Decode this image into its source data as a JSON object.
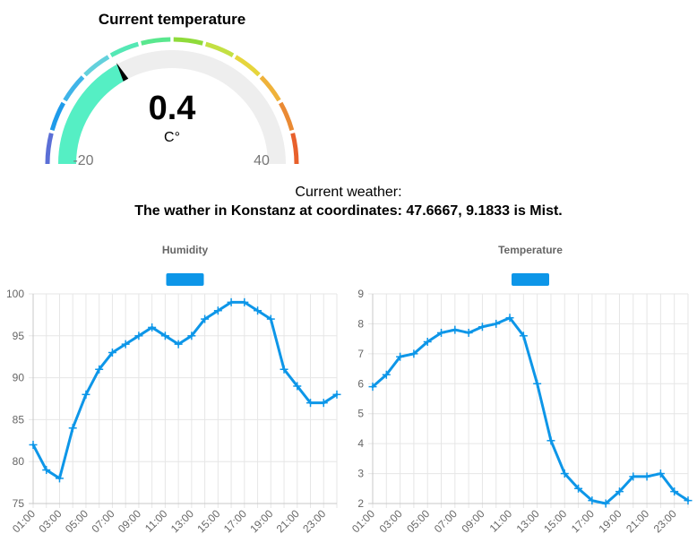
{
  "gauge": {
    "title": "Current temperature",
    "value": 0.4,
    "value_text": "0.4",
    "unit": "C°",
    "min": -20,
    "max": 40,
    "min_label": "-20",
    "max_label": "40",
    "fill_color": "#55efc4",
    "track_color": "#eeeeee",
    "band_colors": [
      "#5b6fd6",
      "#1e9bea",
      "#3fb4e8",
      "#63d1dc",
      "#55e8b5",
      "#59e78e",
      "#8fdb3a",
      "#c3e043",
      "#e6d53c",
      "#efb23a",
      "#ea8a34",
      "#e8602c"
    ]
  },
  "weather": {
    "label": "Current weather:",
    "description": "The wather in Konstanz at coordinates: 47.6667, 9.1833 is Mist."
  },
  "chart_data": [
    {
      "type": "line",
      "title": "Humidity",
      "x": [
        "01:00",
        "02:00",
        "03:00",
        "04:00",
        "05:00",
        "06:00",
        "07:00",
        "08:00",
        "09:00",
        "10:00",
        "11:00",
        "12:00",
        "13:00",
        "14:00",
        "15:00",
        "16:00",
        "17:00",
        "18:00",
        "19:00",
        "20:00",
        "21:00",
        "22:00",
        "23:00",
        "24:00"
      ],
      "xtick_labels": [
        "01:00",
        "03:00",
        "05:00",
        "07:00",
        "09:00",
        "11:00",
        "13:00",
        "15:00",
        "17:00",
        "19:00",
        "21:00",
        "23:00"
      ],
      "series": [
        {
          "values": [
            82,
            79,
            78,
            84,
            88,
            91,
            93,
            94,
            95,
            96,
            95,
            94,
            95,
            97,
            98,
            99,
            99,
            98,
            97,
            91,
            89,
            87,
            87,
            88
          ],
          "color": "#0d96e8"
        }
      ],
      "ylim": [
        75,
        100
      ],
      "yticks": [
        75,
        80,
        85,
        90,
        95,
        100
      ],
      "grid": true,
      "legend": "top-center"
    },
    {
      "type": "line",
      "title": "Temperature",
      "x": [
        "01:00",
        "02:00",
        "03:00",
        "04:00",
        "05:00",
        "06:00",
        "07:00",
        "08:00",
        "09:00",
        "10:00",
        "11:00",
        "12:00",
        "13:00",
        "14:00",
        "15:00",
        "16:00",
        "17:00",
        "18:00",
        "19:00",
        "20:00",
        "21:00",
        "22:00",
        "23:00",
        "24:00"
      ],
      "xtick_labels": [
        "01:00",
        "03:00",
        "05:00",
        "07:00",
        "09:00",
        "11:00",
        "13:00",
        "15:00",
        "17:00",
        "19:00",
        "21:00",
        "23:00"
      ],
      "series": [
        {
          "values": [
            5.9,
            6.3,
            6.9,
            7.0,
            7.4,
            7.7,
            7.8,
            7.7,
            7.9,
            8.0,
            8.2,
            7.6,
            6.0,
            4.1,
            3.0,
            2.5,
            2.1,
            2.0,
            2.4,
            2.9,
            2.9,
            3.0,
            2.4,
            2.1
          ],
          "color": "#0d96e8"
        }
      ],
      "ylim": [
        2,
        9
      ],
      "yticks": [
        2,
        3,
        4,
        5,
        6,
        7,
        8,
        9
      ],
      "grid": true,
      "legend": "top-center"
    }
  ]
}
